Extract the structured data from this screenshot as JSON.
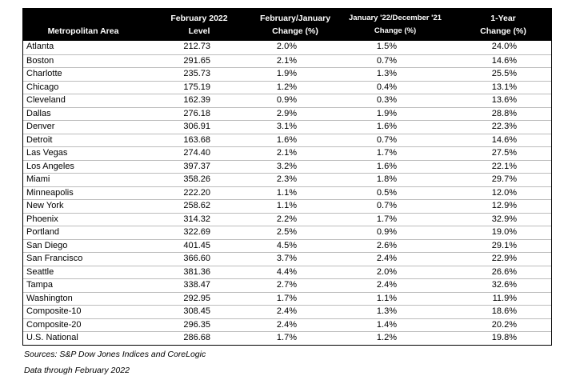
{
  "table": {
    "columns": [
      {
        "lines": [
          "Metropolitan Area"
        ]
      },
      {
        "lines": [
          "February 2022",
          "Level"
        ]
      },
      {
        "lines": [
          "February/January",
          "Change (%)"
        ]
      },
      {
        "lines": [
          "January '22/December '21",
          "Change (%)"
        ]
      },
      {
        "lines": [
          "1-Year",
          "Change (%)"
        ]
      }
    ],
    "rows": [
      [
        "Atlanta",
        "212.73",
        "2.0%",
        "1.5%",
        "24.0%"
      ],
      [
        "Boston",
        "291.65",
        "2.1%",
        "0.7%",
        "14.6%"
      ],
      [
        "Charlotte",
        "235.73",
        "1.9%",
        "1.3%",
        "25.5%"
      ],
      [
        "Chicago",
        "175.19",
        "1.2%",
        "0.4%",
        "13.1%"
      ],
      [
        "Cleveland",
        "162.39",
        "0.9%",
        "0.3%",
        "13.6%"
      ],
      [
        "Dallas",
        "276.18",
        "2.9%",
        "1.9%",
        "28.8%"
      ],
      [
        "Denver",
        "306.91",
        "3.1%",
        "1.6%",
        "22.3%"
      ],
      [
        "Detroit",
        "163.68",
        "1.6%",
        "0.7%",
        "14.6%"
      ],
      [
        "Las Vegas",
        "274.40",
        "2.1%",
        "1.7%",
        "27.5%"
      ],
      [
        "Los Angeles",
        "397.37",
        "3.2%",
        "1.6%",
        "22.1%"
      ],
      [
        "Miami",
        "358.26",
        "2.3%",
        "1.8%",
        "29.7%"
      ],
      [
        "Minneapolis",
        "222.20",
        "1.1%",
        "0.5%",
        "12.0%"
      ],
      [
        "New York",
        "258.62",
        "1.1%",
        "0.7%",
        "12.9%"
      ],
      [
        "Phoenix",
        "314.32",
        "2.2%",
        "1.7%",
        "32.9%"
      ],
      [
        "Portland",
        "322.69",
        "2.5%",
        "0.9%",
        "19.0%"
      ],
      [
        "San Diego",
        "401.45",
        "4.5%",
        "2.6%",
        "29.1%"
      ],
      [
        "San Francisco",
        "366.60",
        "3.7%",
        "2.4%",
        "22.9%"
      ],
      [
        "Seattle",
        "381.36",
        "4.4%",
        "2.0%",
        "26.6%"
      ],
      [
        "Tampa",
        "338.47",
        "2.7%",
        "2.4%",
        "32.6%"
      ],
      [
        "Washington",
        "292.95",
        "1.7%",
        "1.1%",
        "11.9%"
      ],
      [
        "Composite-10",
        "308.45",
        "2.4%",
        "1.3%",
        "18.6%"
      ],
      [
        "Composite-20",
        "296.35",
        "2.4%",
        "1.4%",
        "20.2%"
      ],
      [
        "U.S. National",
        "286.68",
        "1.7%",
        "1.2%",
        "19.8%"
      ]
    ]
  },
  "notes": [
    "Sources: S&P Dow Jones Indices and CoreLogic",
    "Data through February 2022"
  ]
}
